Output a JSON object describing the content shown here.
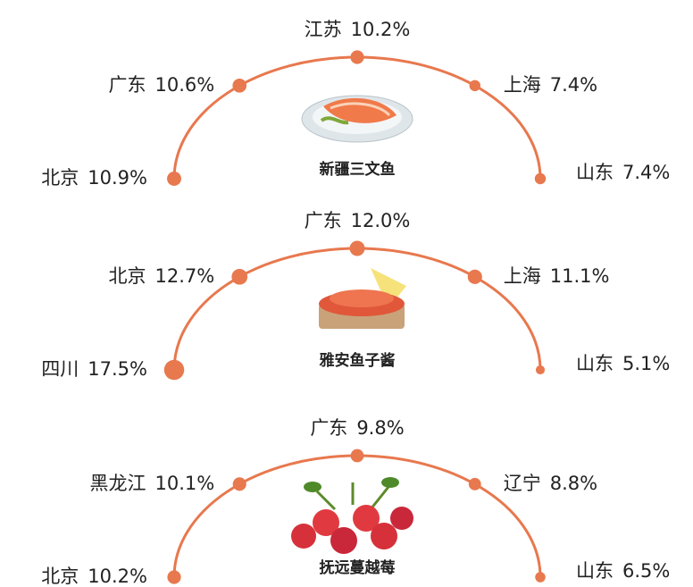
{
  "chart_data": [
    {
      "type": "arc",
      "title": "新疆三文鱼",
      "categories": [
        "北京",
        "广东",
        "江苏",
        "上海",
        "山东"
      ],
      "values": [
        10.9,
        10.6,
        10.2,
        7.4,
        7.4
      ],
      "value_labels": [
        "10.9%",
        "10.6%",
        "10.2%",
        "7.4%",
        "7.4%"
      ],
      "color": "#e8784e"
    },
    {
      "type": "arc",
      "title": "雅安鱼子酱",
      "categories": [
        "四川",
        "北京",
        "广东",
        "上海",
        "山东"
      ],
      "values": [
        17.5,
        12.7,
        12.0,
        11.1,
        5.1
      ],
      "value_labels": [
        "17.5%",
        "12.7%",
        "12.0%",
        "11.1%",
        "5.1%"
      ],
      "color": "#e8784e"
    },
    {
      "type": "arc",
      "title": "抚远蔓越莓",
      "categories": [
        "北京",
        "黑龙江",
        "广东",
        "辽宁",
        "山东"
      ],
      "values": [
        10.2,
        10.1,
        9.8,
        8.8,
        6.5
      ],
      "value_labels": [
        "10.2%",
        "10.1%",
        "9.8%",
        "8.8%",
        "6.5%"
      ],
      "color": "#e8784e"
    }
  ]
}
